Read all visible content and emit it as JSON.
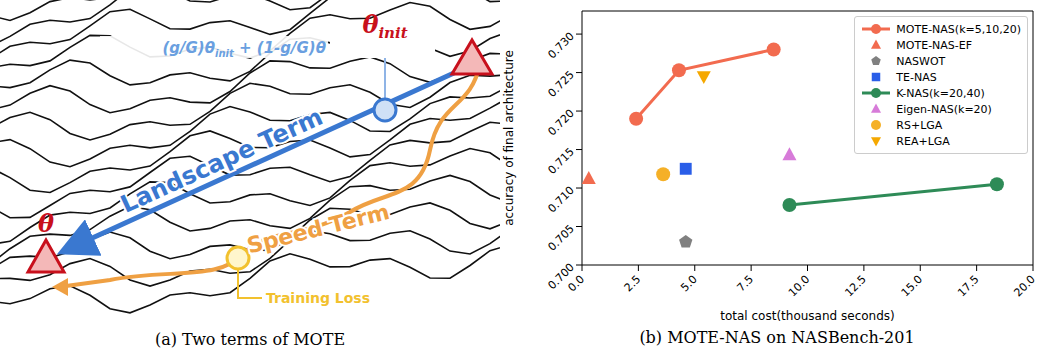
{
  "diagram": {
    "caption": "(a) Two terms of MOTE",
    "theta_init": {
      "symbol": "θ",
      "subscript": "init"
    },
    "theta": "θ",
    "formula": [
      {
        "text": "(g/G)θ"
      },
      {
        "sub": "init"
      },
      {
        "text": " + (1-g/G)θ"
      }
    ],
    "landscape_term": "Landscape Term",
    "speed_term": "Speed Term",
    "training_loss": "Training Loss"
  },
  "chart_data": {
    "type": "scatter",
    "caption": "(b) MOTE-NAS on NASBench-201",
    "x_label": "total cost(thousand seconds)",
    "y_label": "accuracy of final architecture",
    "xlim": [
      0,
      20
    ],
    "xticks": [
      {
        "value": 0,
        "label": "0.0"
      },
      2.5,
      {
        "value": 5,
        "label": "5.0"
      },
      7.5,
      {
        "value": 10,
        "label": "10.0"
      },
      12.5,
      {
        "value": 15,
        "label": "15.0"
      },
      17.5,
      {
        "value": 20,
        "label": "20.0"
      }
    ],
    "ylim": [
      0.7,
      0.733
    ],
    "yticks": [
      {
        "value": 0.7,
        "label": "0.700"
      },
      0.705,
      {
        "value": 0.71,
        "label": "0.710"
      },
      0.715,
      {
        "value": 0.72,
        "label": "0.720"
      },
      0.725,
      {
        "value": 0.73,
        "label": "0.730"
      }
    ],
    "legend": "upper right",
    "grid": false,
    "series": [
      {
        "name": "MOTE-NAS(k=5,10,20)",
        "color": "#f26b4f",
        "marker": "circle",
        "line_style": "solid",
        "x": [
          2.4,
          4.3,
          8.5
        ],
        "values": [
          0.719,
          0.7253,
          0.728
        ]
      },
      {
        "name": "MOTE-NAS-EF",
        "color": "#f26b4f",
        "marker": "triangle",
        "x": [
          0.3
        ],
        "values": [
          0.7112
        ]
      },
      {
        "name": "NASWOT",
        "color": "#808080",
        "marker": "pentagon",
        "x": [
          4.6
        ],
        "values": [
          0.703
        ]
      },
      {
        "name": "TE-NAS",
        "color": "#2a5ee8",
        "marker": "square",
        "x": [
          4.6
        ],
        "values": [
          0.7125
        ]
      },
      {
        "name": "K-NAS(k=20,40)",
        "color": "#2e8b57",
        "marker": "circle",
        "line_style": "solid",
        "x": [
          9.2,
          18.4
        ],
        "values": [
          0.7078,
          0.7105
        ]
      },
      {
        "name": "Eigen-NAS(k=20)",
        "color": "#d77bd9",
        "marker": "triangle",
        "x": [
          9.2
        ],
        "values": [
          0.7143
        ]
      },
      {
        "name": "RS+LGA",
        "color": "#f5b027",
        "marker": "circle",
        "x": [
          3.6
        ],
        "values": [
          0.7118
        ]
      },
      {
        "name": "REA+LGA",
        "color": "#f5a800",
        "marker": "triangle-down",
        "x": [
          5.4
        ],
        "values": [
          0.7245
        ]
      }
    ]
  }
}
